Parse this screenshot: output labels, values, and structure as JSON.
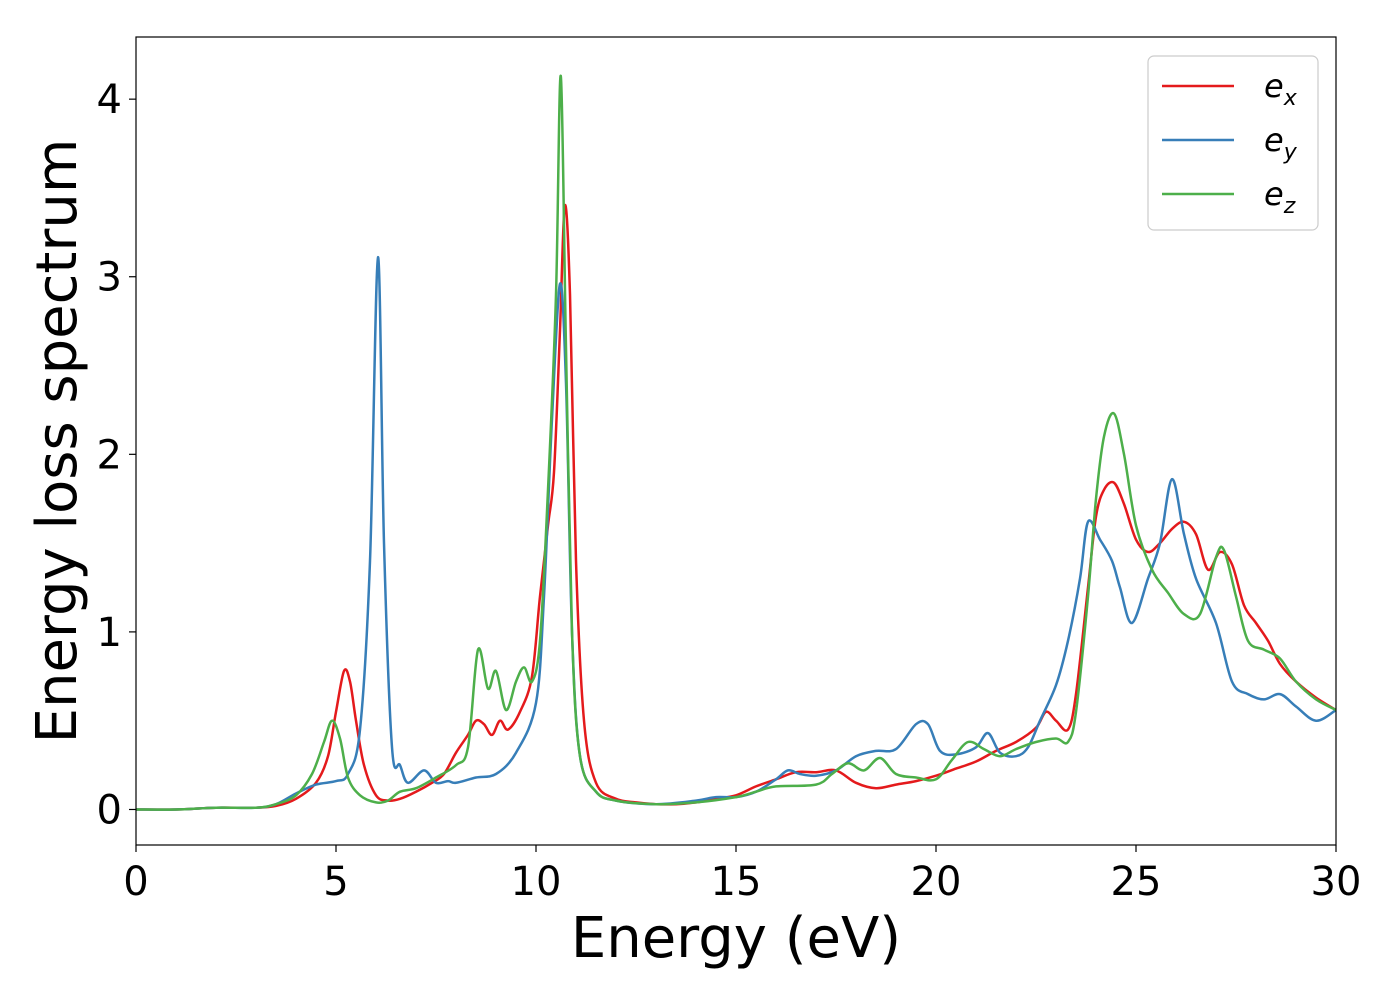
{
  "chart_data": {
    "type": "line",
    "xlabel": "Energy (eV)",
    "ylabel": "Energy loss spectrum",
    "xlim": [
      0,
      30
    ],
    "ylim": [
      -0.2,
      4.35
    ],
    "xticks": [
      0,
      5,
      10,
      15,
      20,
      25,
      30
    ],
    "yticks": [
      0,
      1,
      2,
      3,
      4
    ],
    "grid": false,
    "legend_position": "top-right",
    "series": [
      {
        "name": "e_x",
        "base": "e",
        "sub": "x",
        "color": "#e41a1c",
        "points": [
          [
            0,
            0
          ],
          [
            1,
            0
          ],
          [
            2,
            0.01
          ],
          [
            3,
            0.01
          ],
          [
            3.5,
            0.02
          ],
          [
            4,
            0.06
          ],
          [
            4.5,
            0.15
          ],
          [
            4.8,
            0.3
          ],
          [
            5,
            0.55
          ],
          [
            5.2,
            0.78
          ],
          [
            5.35,
            0.72
          ],
          [
            5.5,
            0.5
          ],
          [
            5.7,
            0.25
          ],
          [
            6,
            0.08
          ],
          [
            6.3,
            0.05
          ],
          [
            6.6,
            0.06
          ],
          [
            7,
            0.1
          ],
          [
            7.4,
            0.15
          ],
          [
            7.7,
            0.2
          ],
          [
            8,
            0.32
          ],
          [
            8.3,
            0.42
          ],
          [
            8.5,
            0.5
          ],
          [
            8.7,
            0.48
          ],
          [
            8.9,
            0.42
          ],
          [
            9.1,
            0.5
          ],
          [
            9.3,
            0.45
          ],
          [
            9.6,
            0.55
          ],
          [
            9.9,
            0.75
          ],
          [
            10.1,
            1.2
          ],
          [
            10.3,
            1.6
          ],
          [
            10.45,
            1.9
          ],
          [
            10.6,
            2.7
          ],
          [
            10.72,
            3.4
          ],
          [
            10.85,
            2.9
          ],
          [
            11,
            1.4
          ],
          [
            11.2,
            0.5
          ],
          [
            11.5,
            0.15
          ],
          [
            12,
            0.06
          ],
          [
            12.5,
            0.04
          ],
          [
            13,
            0.03
          ],
          [
            13.5,
            0.03
          ],
          [
            14,
            0.04
          ],
          [
            14.5,
            0.06
          ],
          [
            15,
            0.08
          ],
          [
            15.5,
            0.13
          ],
          [
            16,
            0.17
          ],
          [
            16.5,
            0.21
          ],
          [
            17,
            0.21
          ],
          [
            17.5,
            0.22
          ],
          [
            18,
            0.15
          ],
          [
            18.5,
            0.12
          ],
          [
            19,
            0.14
          ],
          [
            19.5,
            0.16
          ],
          [
            20,
            0.19
          ],
          [
            20.5,
            0.23
          ],
          [
            21,
            0.27
          ],
          [
            21.5,
            0.33
          ],
          [
            22,
            0.38
          ],
          [
            22.5,
            0.46
          ],
          [
            22.75,
            0.55
          ],
          [
            23,
            0.5
          ],
          [
            23.3,
            0.45
          ],
          [
            23.5,
            0.65
          ],
          [
            23.8,
            1.25
          ],
          [
            24,
            1.65
          ],
          [
            24.2,
            1.8
          ],
          [
            24.45,
            1.84
          ],
          [
            24.7,
            1.72
          ],
          [
            25,
            1.52
          ],
          [
            25.3,
            1.45
          ],
          [
            25.6,
            1.5
          ],
          [
            25.9,
            1.58
          ],
          [
            26.2,
            1.62
          ],
          [
            26.5,
            1.55
          ],
          [
            26.8,
            1.35
          ],
          [
            27.1,
            1.45
          ],
          [
            27.4,
            1.38
          ],
          [
            27.7,
            1.15
          ],
          [
            28,
            1.05
          ],
          [
            28.3,
            0.95
          ],
          [
            28.6,
            0.82
          ],
          [
            29,
            0.72
          ],
          [
            29.5,
            0.63
          ],
          [
            30,
            0.56
          ]
        ]
      },
      {
        "name": "e_y",
        "base": "e",
        "sub": "y",
        "color": "#377eb8",
        "points": [
          [
            0,
            0
          ],
          [
            1,
            0
          ],
          [
            2,
            0.01
          ],
          [
            3,
            0.01
          ],
          [
            3.5,
            0.03
          ],
          [
            4,
            0.09
          ],
          [
            4.5,
            0.14
          ],
          [
            5,
            0.16
          ],
          [
            5.3,
            0.2
          ],
          [
            5.6,
            0.45
          ],
          [
            5.85,
            1.4
          ],
          [
            6.05,
            3.11
          ],
          [
            6.2,
            1.5
          ],
          [
            6.4,
            0.35
          ],
          [
            6.6,
            0.25
          ],
          [
            6.8,
            0.15
          ],
          [
            7.2,
            0.22
          ],
          [
            7.5,
            0.15
          ],
          [
            7.8,
            0.16
          ],
          [
            8,
            0.15
          ],
          [
            8.5,
            0.18
          ],
          [
            9,
            0.2
          ],
          [
            9.5,
            0.32
          ],
          [
            10,
            0.6
          ],
          [
            10.2,
            1.2
          ],
          [
            10.4,
            2.2
          ],
          [
            10.6,
            2.96
          ],
          [
            10.75,
            2.4
          ],
          [
            10.9,
            1.0
          ],
          [
            11.1,
            0.3
          ],
          [
            11.5,
            0.1
          ],
          [
            12,
            0.05
          ],
          [
            13,
            0.03
          ],
          [
            14,
            0.05
          ],
          [
            14.5,
            0.07
          ],
          [
            15,
            0.07
          ],
          [
            15.5,
            0.1
          ],
          [
            16,
            0.17
          ],
          [
            16.3,
            0.22
          ],
          [
            16.6,
            0.2
          ],
          [
            17,
            0.19
          ],
          [
            17.5,
            0.22
          ],
          [
            18,
            0.3
          ],
          [
            18.5,
            0.33
          ],
          [
            19,
            0.34
          ],
          [
            19.5,
            0.48
          ],
          [
            19.8,
            0.48
          ],
          [
            20.1,
            0.33
          ],
          [
            20.5,
            0.31
          ],
          [
            21,
            0.35
          ],
          [
            21.3,
            0.43
          ],
          [
            21.6,
            0.32
          ],
          [
            22,
            0.3
          ],
          [
            22.3,
            0.35
          ],
          [
            22.6,
            0.5
          ],
          [
            23,
            0.7
          ],
          [
            23.3,
            0.95
          ],
          [
            23.6,
            1.3
          ],
          [
            23.8,
            1.62
          ],
          [
            24.1,
            1.52
          ],
          [
            24.4,
            1.4
          ],
          [
            24.6,
            1.25
          ],
          [
            24.9,
            1.05
          ],
          [
            25.3,
            1.3
          ],
          [
            25.6,
            1.5
          ],
          [
            25.9,
            1.86
          ],
          [
            26.2,
            1.55
          ],
          [
            26.5,
            1.3
          ],
          [
            27,
            1.05
          ],
          [
            27.4,
            0.72
          ],
          [
            27.8,
            0.65
          ],
          [
            28.2,
            0.62
          ],
          [
            28.6,
            0.65
          ],
          [
            29,
            0.58
          ],
          [
            29.5,
            0.5
          ],
          [
            30,
            0.56
          ]
        ]
      },
      {
        "name": "e_z",
        "base": "e",
        "sub": "z",
        "color": "#4daf4a",
        "points": [
          [
            0,
            0
          ],
          [
            1,
            0
          ],
          [
            2,
            0.01
          ],
          [
            3,
            0.01
          ],
          [
            3.5,
            0.03
          ],
          [
            4,
            0.08
          ],
          [
            4.4,
            0.2
          ],
          [
            4.7,
            0.38
          ],
          [
            4.9,
            0.5
          ],
          [
            5.1,
            0.4
          ],
          [
            5.3,
            0.18
          ],
          [
            5.6,
            0.08
          ],
          [
            6,
            0.04
          ],
          [
            6.3,
            0.05
          ],
          [
            6.6,
            0.1
          ],
          [
            7,
            0.12
          ],
          [
            7.5,
            0.18
          ],
          [
            8,
            0.25
          ],
          [
            8.3,
            0.35
          ],
          [
            8.55,
            0.9
          ],
          [
            8.8,
            0.68
          ],
          [
            9,
            0.78
          ],
          [
            9.25,
            0.56
          ],
          [
            9.5,
            0.72
          ],
          [
            9.7,
            0.8
          ],
          [
            9.9,
            0.72
          ],
          [
            10.1,
            0.95
          ],
          [
            10.3,
            1.8
          ],
          [
            10.5,
            2.9
          ],
          [
            10.62,
            4.13
          ],
          [
            10.75,
            2.6
          ],
          [
            10.9,
            1.0
          ],
          [
            11.1,
            0.3
          ],
          [
            11.5,
            0.1
          ],
          [
            12,
            0.05
          ],
          [
            13,
            0.03
          ],
          [
            14,
            0.04
          ],
          [
            15,
            0.07
          ],
          [
            15.5,
            0.1
          ],
          [
            16,
            0.13
          ],
          [
            17,
            0.14
          ],
          [
            17.4,
            0.2
          ],
          [
            17.8,
            0.26
          ],
          [
            18.2,
            0.22
          ],
          [
            18.6,
            0.29
          ],
          [
            19,
            0.2
          ],
          [
            19.5,
            0.18
          ],
          [
            20,
            0.17
          ],
          [
            20.4,
            0.28
          ],
          [
            20.8,
            0.38
          ],
          [
            21.2,
            0.34
          ],
          [
            21.6,
            0.3
          ],
          [
            22,
            0.34
          ],
          [
            22.5,
            0.38
          ],
          [
            23,
            0.4
          ],
          [
            23.3,
            0.38
          ],
          [
            23.5,
            0.55
          ],
          [
            23.8,
            1.2
          ],
          [
            24,
            1.75
          ],
          [
            24.2,
            2.1
          ],
          [
            24.45,
            2.23
          ],
          [
            24.7,
            2.0
          ],
          [
            25,
            1.6
          ],
          [
            25.4,
            1.35
          ],
          [
            25.8,
            1.22
          ],
          [
            26.2,
            1.1
          ],
          [
            26.6,
            1.1
          ],
          [
            27,
            1.42
          ],
          [
            27.2,
            1.46
          ],
          [
            27.5,
            1.2
          ],
          [
            27.8,
            0.95
          ],
          [
            28.2,
            0.9
          ],
          [
            28.6,
            0.85
          ],
          [
            29,
            0.72
          ],
          [
            29.5,
            0.62
          ],
          [
            30,
            0.56
          ]
        ]
      }
    ]
  }
}
